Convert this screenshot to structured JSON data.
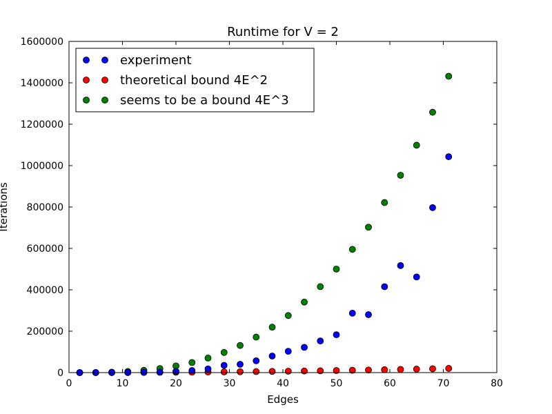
{
  "chart_data": {
    "type": "scatter",
    "title": "Runtime for V = 2",
    "xlabel": "Edges",
    "ylabel": "Iterations",
    "xlim": [
      0,
      80
    ],
    "ylim": [
      0,
      1600000
    ],
    "xticks": [
      "0",
      "10",
      "20",
      "30",
      "40",
      "50",
      "60",
      "70",
      "80"
    ],
    "yticks": [
      "0",
      "200000",
      "400000",
      "600000",
      "800000",
      "1000000",
      "1200000",
      "1400000",
      "1600000"
    ],
    "grid": false,
    "legend_position": "top-left",
    "x": [
      2,
      5,
      8,
      11,
      14,
      17,
      20,
      23,
      26,
      29,
      32,
      35,
      38,
      41,
      44,
      47,
      50,
      53,
      56,
      59,
      62,
      65,
      68,
      71
    ],
    "series": [
      {
        "name": "experiment",
        "color": "#0000ff",
        "values": [
          0,
          0,
          200,
          600,
          1500,
          3000,
          6000,
          10000,
          18000,
          35000,
          40000,
          57000,
          80000,
          103000,
          122000,
          153000,
          183000,
          287000,
          280000,
          415000,
          517000,
          462000,
          797000,
          1043000
        ]
      },
      {
        "name": "theoretical bound 4E^2",
        "color": "#ff0000",
        "values": [
          16,
          100,
          256,
          484,
          784,
          1156,
          1600,
          2116,
          2704,
          3364,
          4096,
          4900,
          5776,
          6724,
          7744,
          8836,
          10000,
          11236,
          12544,
          13924,
          15376,
          16900,
          18496,
          20164
        ]
      },
      {
        "name": "seems to be a bound 4E^3",
        "color": "#008000",
        "values": [
          32,
          500,
          2048,
          5324,
          10976,
          19652,
          32000,
          48668,
          70304,
          97556,
          131072,
          171500,
          219488,
          275684,
          340736,
          415292,
          500000,
          595508,
          702464,
          821516,
          953312,
          1098500,
          1257728,
          1431644
        ]
      }
    ]
  }
}
